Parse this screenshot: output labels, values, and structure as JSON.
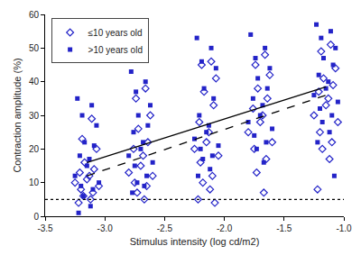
{
  "chart_data": {
    "type": "scatter",
    "x_label": "Stimulus intensity (log cd/m2)",
    "y_label": "Contraction amplitude (%)",
    "xlim": [
      -3.5,
      -1.0
    ],
    "xticks": [
      -3.5,
      {
        "value": -3.0,
        "label": "-3.0"
      },
      -2.5,
      {
        "value": -2.0,
        "label": "-2.0"
      },
      -1.5,
      {
        "value": -1.0,
        "label": "-1.0"
      }
    ],
    "ylim": [
      0,
      60
    ],
    "yticks": [
      0,
      10,
      20,
      30,
      40,
      50,
      60
    ],
    "grid": false,
    "legend": "upper left",
    "series": [
      {
        "name": "≤10 years old",
        "type": "scatter",
        "marker": "diamond-open",
        "color": "#2323c8",
        "x": [
          -3.11,
          -3.19,
          -3.07,
          -3.17,
          -3.09,
          -3.21,
          -3.13,
          -3.15,
          -3.25,
          -3.05,
          -3.2,
          -3.1,
          -3.18,
          -3.12,
          -3.22,
          -2.66,
          -2.74,
          -2.62,
          -2.72,
          -2.64,
          -2.76,
          -2.68,
          -2.7,
          -2.8,
          -2.6,
          -2.75,
          -2.65,
          -2.73,
          -2.67,
          -2.11,
          -2.19,
          -2.07,
          -2.17,
          -2.09,
          -2.21,
          -2.13,
          -2.15,
          -2.25,
          -2.05,
          -2.2,
          -2.1,
          -2.18,
          -2.12,
          -2.22,
          -2.08,
          -1.66,
          -1.74,
          -1.62,
          -1.72,
          -1.64,
          -1.76,
          -1.68,
          -1.7,
          -1.8,
          -1.6,
          -1.75,
          -1.65,
          -1.73,
          -1.67,
          -1.11,
          -1.19,
          -1.07,
          -1.17,
          -1.09,
          -1.21,
          -1.13,
          -1.15,
          -1.25,
          -1.05,
          -1.2,
          -1.1,
          -1.18,
          -1.12,
          -1.22
        ],
        "values": [
          29,
          23,
          20,
          16,
          14,
          13,
          12,
          11,
          10,
          9,
          8,
          7,
          6,
          5,
          4,
          38,
          35,
          30,
          26,
          22,
          20,
          18,
          15,
          13,
          12,
          10,
          9,
          7,
          5,
          46,
          45,
          41,
          37,
          33,
          28,
          25,
          22,
          20,
          18,
          16,
          12,
          10,
          8,
          5,
          4,
          48,
          45,
          42,
          38,
          35,
          32,
          30,
          28,
          25,
          22,
          20,
          17,
          13,
          7,
          51,
          49,
          44,
          41,
          39,
          37,
          35,
          33,
          30,
          28,
          25,
          22,
          20,
          17,
          8
        ]
      },
      {
        "name": ">10 years old",
        "type": "scatter",
        "marker": "square",
        "color": "#2323c8",
        "x": [
          -3.23,
          -3.11,
          -3.19,
          -3.07,
          -3.17,
          -3.09,
          -3.21,
          -3.13,
          -3.15,
          -3.25,
          -3.05,
          -3.2,
          -3.1,
          -3.18,
          -3.12,
          -3.22,
          -2.78,
          -2.66,
          -2.74,
          -2.62,
          -2.72,
          -2.64,
          -2.76,
          -2.68,
          -2.7,
          -2.8,
          -2.6,
          -2.75,
          -2.65,
          -2.73,
          -2.67,
          -2.77,
          -2.23,
          -2.11,
          -2.19,
          -2.07,
          -2.17,
          -2.09,
          -2.21,
          -2.13,
          -2.15,
          -2.25,
          -2.05,
          -2.2,
          -2.1,
          -2.18,
          -2.12,
          -2.22,
          -1.78,
          -1.66,
          -1.74,
          -1.62,
          -1.72,
          -1.64,
          -1.76,
          -1.68,
          -1.7,
          -1.8,
          -1.6,
          -1.75,
          -1.65,
          -1.73,
          -1.67,
          -1.23,
          -1.11,
          -1.19,
          -1.07,
          -1.17,
          -1.09,
          -1.21,
          -1.13,
          -1.15,
          -1.25,
          -1.05,
          -1.2,
          -1.1,
          -1.18,
          -1.12,
          -1.22,
          -1.08
        ],
        "values": [
          35,
          33,
          30,
          27,
          22,
          21,
          18,
          17,
          15,
          12,
          10,
          9,
          8,
          6,
          3,
          1,
          43,
          40,
          37,
          33,
          30,
          27,
          25,
          22,
          20,
          18,
          16,
          15,
          12,
          10,
          9,
          7,
          53,
          50,
          46,
          44,
          38,
          35,
          30,
          27,
          25,
          23,
          21,
          20,
          18,
          17,
          14,
          12,
          54,
          50,
          47,
          44,
          41,
          38,
          35,
          33,
          30,
          28,
          26,
          24,
          22,
          20,
          16,
          57,
          55,
          53,
          50,
          47,
          45,
          42,
          40,
          38,
          36,
          34,
          32,
          30,
          28,
          25,
          22,
          12
        ]
      },
      {
        "type": "line",
        "line_style": "dash",
        "color": "#000000",
        "x": [
          -3.15,
          -1.15
        ],
        "values": [
          12,
          36
        ]
      },
      {
        "type": "line",
        "line_style": "solid",
        "color": "#000000",
        "x": [
          -3.15,
          -1.15
        ],
        "values": [
          16,
          38.5
        ]
      },
      {
        "type": "line",
        "line_style": "dot",
        "color": "#000000",
        "x": [
          -3.5,
          -1.0
        ],
        "values": [
          5,
          5
        ]
      }
    ]
  }
}
